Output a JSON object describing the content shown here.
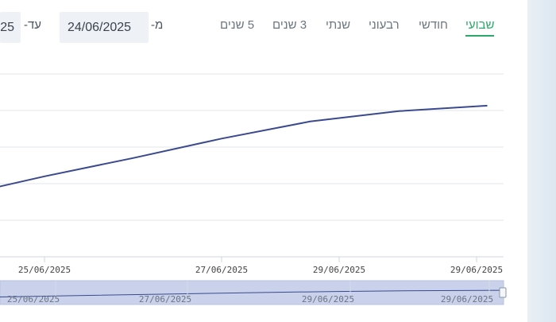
{
  "range_tabs": [
    {
      "label": "שבועי",
      "active": true
    },
    {
      "label": "חודשי",
      "active": false
    },
    {
      "label": "רבעוני",
      "active": false
    },
    {
      "label": "שנתי",
      "active": false
    },
    {
      "label": "3 שנים",
      "active": false
    },
    {
      "label": "5 שנים",
      "active": false
    }
  ],
  "date_range": {
    "from_label": "מ-",
    "from_value": "24/06/2025",
    "to_label": "עד-",
    "to_value_visible": "25"
  },
  "colors": {
    "line": "#3b4a8f",
    "accent": "#2ea86a",
    "navigator_fill": "#c9d2ea"
  },
  "chart_data": {
    "type": "line",
    "title": "",
    "xlabel": "",
    "ylabel": "",
    "x_ticks": [
      "25/06/2025",
      "27/06/2025",
      "29/06/2025",
      "29/06/2025"
    ],
    "navigator_ticks": [
      "25/06/2025",
      "27/06/2025",
      "29/06/2025",
      "29/06/2025"
    ],
    "grid": true,
    "series": [
      {
        "x": [
          "24/06/2025",
          "25/06/2025",
          "26/06/2025",
          "27/06/2025",
          "28/06/2025",
          "29/06/2025",
          "30/06/2025"
        ],
        "values": [
          0.99,
          1.32,
          1.62,
          1.94,
          2.22,
          2.39,
          2.48
        ]
      }
    ],
    "ylim": [
      0,
      3
    ]
  }
}
